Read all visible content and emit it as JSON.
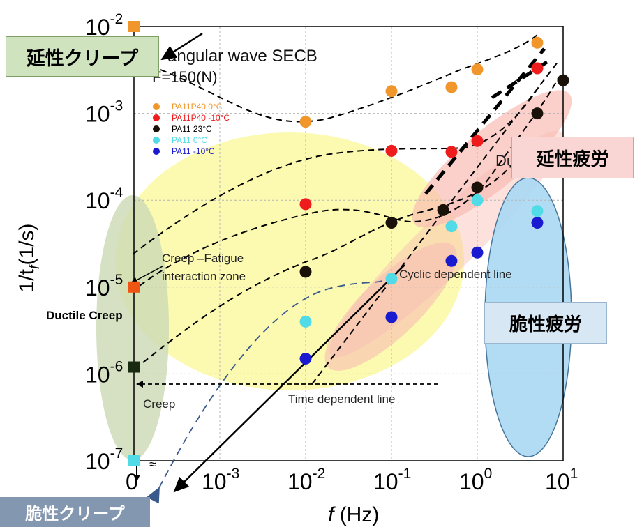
{
  "chart_data": {
    "type": "scatter",
    "title": "angular wave SECB",
    "subtitle": "F=150(N)",
    "xlabel_italic": "f",
    "xlabel_unit": " (Hz)",
    "ylabel_prefix": "1/t",
    "ylabel_sub": "f",
    "ylabel_unit": "(1/s)",
    "x_scale": "log",
    "y_scale": "log",
    "xlim": [
      0.0001,
      10
    ],
    "ylim": [
      1e-07,
      0.01
    ],
    "grid": true,
    "legend_position": "top-left",
    "x_ticks": [
      {
        "base": "0",
        "exp": ""
      },
      {
        "base": "10",
        "exp": "-3"
      },
      {
        "base": "10",
        "exp": "-2"
      },
      {
        "base": "10",
        "exp": "-1"
      },
      {
        "base": "10",
        "exp": "0"
      },
      {
        "base": "10",
        "exp": "1"
      }
    ],
    "y_ticks": [
      {
        "base": "10",
        "exp": "-2"
      },
      {
        "base": "10",
        "exp": "-3"
      },
      {
        "base": "10",
        "exp": "-4"
      },
      {
        "base": "10",
        "exp": "-5"
      },
      {
        "base": "10",
        "exp": "-6"
      },
      {
        "base": "10",
        "exp": "-7"
      }
    ],
    "series": [
      {
        "name": "PA11P40  0°C",
        "color": "#f0962a",
        "points": [
          [
            0.01,
            0.0008
          ],
          [
            0.1,
            0.0018
          ],
          [
            0.5,
            0.002
          ],
          [
            1,
            0.0032
          ],
          [
            5,
            0.0065
          ]
        ]
      },
      {
        "name": "PA11P40  -10°C",
        "color": "#ee1c1c",
        "points": [
          [
            0.01,
            9e-05
          ],
          [
            0.1,
            0.00037
          ],
          [
            0.5,
            0.00036
          ],
          [
            1,
            0.00048
          ],
          [
            5,
            0.0033
          ]
        ]
      },
      {
        "name": "PA11  23°C",
        "color": "#1a1109",
        "points": [
          [
            0.01,
            1.5e-05
          ],
          [
            0.1,
            5.5e-05
          ],
          [
            0.4,
            7.7e-05
          ],
          [
            1,
            0.00014
          ],
          [
            5,
            0.001
          ],
          [
            10,
            0.0024
          ]
        ]
      },
      {
        "name": "PA11  0°C",
        "color": "#50dbe6",
        "points": [
          [
            0.01,
            4e-06
          ],
          [
            0.1,
            1.25e-05
          ],
          [
            0.5,
            5e-05
          ],
          [
            1,
            0.0001
          ],
          [
            5,
            7.5e-05
          ]
        ]
      },
      {
        "name": "PA11  -10°C",
        "color": "#1a1ad0",
        "points": [
          [
            0.01,
            1.5e-06
          ],
          [
            0.1,
            4.5e-06
          ],
          [
            0.5,
            2e-05
          ],
          [
            1,
            2.5e-05
          ],
          [
            5,
            5.5e-05
          ]
        ]
      }
    ],
    "creep_points": [
      {
        "x": 0,
        "y": 0.01,
        "color": "#f0962a"
      },
      {
        "x": 0,
        "y": 1e-05,
        "color": "#ee5512"
      },
      {
        "x": 0,
        "y": 1.2e-06,
        "color": "#1a2a10"
      },
      {
        "x": 0,
        "y": 1e-07,
        "color": "#50dbe6"
      }
    ],
    "annotations": {
      "creep_fatigue": [
        "Creep –Fatigue",
        " interaction zone"
      ],
      "ductile_creep": "Ductile Creep",
      "creep": "Creep",
      "cyclic_line": "Cyclic dependent line",
      "time_line": "Time dependent line",
      "du_fragment": "Du",
      "axis_break": "≈"
    }
  },
  "overlay_boxes": {
    "ductile_creep": "延性クリープ",
    "ductile_fatigue": "延性疲労",
    "brittle_fatigue": "脆性疲労",
    "brittle_creep": "脆性クリープ"
  },
  "colors": {
    "grid": "#b5b5b5",
    "yellow_zone": "#fbfaa7",
    "green_zone": "#ccd9b5",
    "pink_zone": "#f9bcb4",
    "blue_zone": "#aedaf4"
  }
}
